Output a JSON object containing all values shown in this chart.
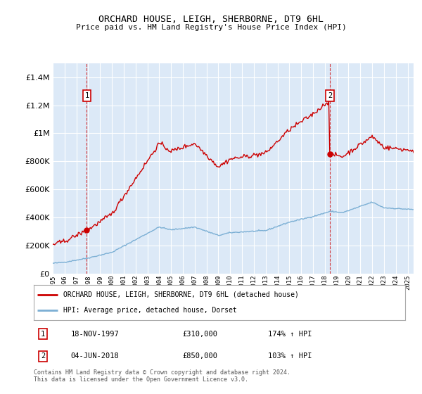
{
  "title": "ORCHARD HOUSE, LEIGH, SHERBORNE, DT9 6HL",
  "subtitle": "Price paid vs. HM Land Registry's House Price Index (HPI)",
  "background_color": "#dce9f7",
  "ylim": [
    0,
    1500000
  ],
  "yticks": [
    0,
    200000,
    400000,
    600000,
    800000,
    1000000,
    1200000,
    1400000
  ],
  "ytick_labels": [
    "£0",
    "£200K",
    "£400K",
    "£600K",
    "£800K",
    "£1M",
    "£1.2M",
    "£1.4M"
  ],
  "legend_line1": "ORCHARD HOUSE, LEIGH, SHERBORNE, DT9 6HL (detached house)",
  "legend_line2": "HPI: Average price, detached house, Dorset",
  "annotation1_date": "18-NOV-1997",
  "annotation1_price": "£310,000",
  "annotation1_hpi": "174% ↑ HPI",
  "annotation2_date": "04-JUN-2018",
  "annotation2_price": "£850,000",
  "annotation2_hpi": "103% ↑ HPI",
  "footer": "Contains HM Land Registry data © Crown copyright and database right 2024.\nThis data is licensed under the Open Government Licence v3.0.",
  "red_color": "#cc0000",
  "blue_color": "#7bafd4",
  "marker1_x": 1997.88,
  "marker1_y": 310000,
  "marker2_x": 2018.42,
  "marker2_y": 850000,
  "xmin": 1995.0,
  "xmax": 2025.5,
  "blue_base": 75000,
  "sale1_price": 310000,
  "sale1_year": 1997.88,
  "sale2_price": 850000,
  "sale2_year": 2018.42
}
